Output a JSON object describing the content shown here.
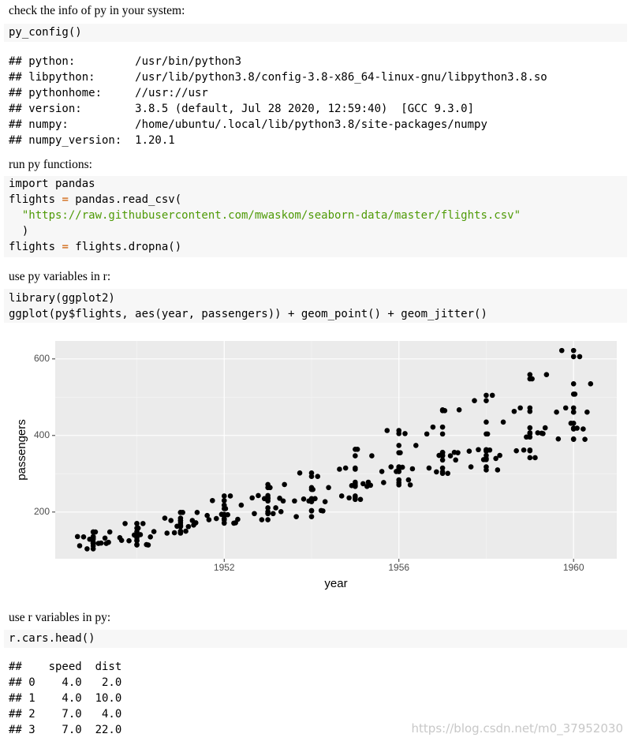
{
  "intro_1": "check the info of py in your system:",
  "code_1": [
    "py_config()"
  ],
  "output_1": [
    "## python:         /usr/bin/python3",
    "## libpython:      /usr/lib/python3.8/config-3.8-x86_64-linux-gnu/libpython3.8.so",
    "## pythonhome:     //usr://usr",
    "## version:        3.8.5 (default, Jul 28 2020, 12:59:40)  [GCC 9.3.0]",
    "## numpy:          /home/ubuntu/.local/lib/python3.8/site-packages/numpy",
    "## numpy_version:  1.20.1"
  ],
  "intro_2": "run py functions:",
  "code_2": [
    [
      "import pandas"
    ],
    [
      "flights ",
      "=",
      " pandas.read_csv("
    ],
    [
      "  \"https://raw.githubusercontent.com/mwaskom/seaborn-data/master/flights.csv\""
    ],
    [
      "  )"
    ],
    [
      "flights ",
      "=",
      " flights.dropna()"
    ]
  ],
  "intro_3": "use py variables in r:",
  "code_3": [
    "library(ggplot2)",
    "ggplot(py$flights, aes(year, passengers)) + geom_point() + geom_jitter()"
  ],
  "chart_data": {
    "type": "scatter",
    "xlabel": "year",
    "ylabel": "passengers",
    "xlim": [
      1948.13,
      1960.99
    ],
    "ylim": [
      78,
      647
    ],
    "xticks": [
      1952,
      1956,
      1960
    ],
    "yticks": [
      200,
      400,
      600
    ],
    "xminor_ticks": [
      1950,
      1954,
      1958
    ],
    "yminor_ticks": [
      300,
      500
    ],
    "grid": true,
    "panel_color": "#ebebeb",
    "series": [
      {
        "color": "#000000",
        "x": [
          1949,
          1949,
          1949,
          1949,
          1949,
          1949,
          1949,
          1949,
          1949,
          1949,
          1949,
          1949,
          1950,
          1950,
          1950,
          1950,
          1950,
          1950,
          1950,
          1950,
          1950,
          1950,
          1950,
          1950,
          1951,
          1951,
          1951,
          1951,
          1951,
          1951,
          1951,
          1951,
          1951,
          1951,
          1951,
          1951,
          1952,
          1952,
          1952,
          1952,
          1952,
          1952,
          1952,
          1952,
          1952,
          1952,
          1952,
          1952,
          1953,
          1953,
          1953,
          1953,
          1953,
          1953,
          1953,
          1953,
          1953,
          1953,
          1953,
          1953,
          1954,
          1954,
          1954,
          1954,
          1954,
          1954,
          1954,
          1954,
          1954,
          1954,
          1954,
          1954,
          1955,
          1955,
          1955,
          1955,
          1955,
          1955,
          1955,
          1955,
          1955,
          1955,
          1955,
          1955,
          1956,
          1956,
          1956,
          1956,
          1956,
          1956,
          1956,
          1956,
          1956,
          1956,
          1956,
          1956,
          1957,
          1957,
          1957,
          1957,
          1957,
          1957,
          1957,
          1957,
          1957,
          1957,
          1957,
          1957,
          1958,
          1958,
          1958,
          1958,
          1958,
          1958,
          1958,
          1958,
          1958,
          1958,
          1958,
          1958,
          1959,
          1959,
          1959,
          1959,
          1959,
          1959,
          1959,
          1959,
          1959,
          1959,
          1959,
          1959,
          1960,
          1960,
          1960,
          1960,
          1960,
          1960,
          1960,
          1960,
          1960,
          1960,
          1960,
          1960
        ],
        "values": [
          112,
          118,
          132,
          129,
          121,
          135,
          148,
          148,
          136,
          119,
          104,
          118,
          115,
          126,
          141,
          135,
          125,
          149,
          170,
          170,
          158,
          133,
          114,
          140,
          145,
          150,
          178,
          163,
          172,
          178,
          199,
          199,
          184,
          162,
          146,
          166,
          171,
          180,
          193,
          181,
          183,
          218,
          230,
          242,
          209,
          191,
          172,
          194,
          196,
          196,
          236,
          235,
          229,
          243,
          264,
          272,
          237,
          211,
          180,
          201,
          204,
          188,
          235,
          227,
          234,
          264,
          302,
          293,
          259,
          229,
          203,
          229,
          242,
          233,
          267,
          269,
          270,
          315,
          364,
          347,
          312,
          274,
          237,
          278,
          284,
          277,
          317,
          313,
          318,
          374,
          413,
          405,
          355,
          306,
          271,
          306,
          315,
          301,
          356,
          348,
          355,
          422,
          465,
          467,
          404,
          347,
          305,
          336,
          340,
          318,
          362,
          348,
          363,
          435,
          491,
          505,
          404,
          359,
          310,
          337,
          360,
          342,
          406,
          396,
          420,
          472,
          548,
          559,
          463,
          407,
          362,
          405,
          417,
          391,
          419,
          461,
          472,
          535,
          622,
          606,
          508,
          461,
          390,
          432
        ]
      },
      {
        "color": "#000000",
        "x": [
          1948.69,
          1949.12,
          1949.27,
          1948.92,
          1949.35,
          1948.78,
          1949.05,
          1949.38,
          1948.64,
          1949.18,
          1948.86,
          1949.3,
          1950.22,
          1949.65,
          1950.08,
          1950.31,
          1949.82,
          1950.39,
          1949.73,
          1950.14,
          1950.03,
          1949.61,
          1950.26,
          1949.94,
          1950.69,
          1951.12,
          1951.27,
          1950.92,
          1951.35,
          1950.78,
          1951.05,
          1951.38,
          1950.64,
          1951.18,
          1950.86,
          1951.3,
          1952.22,
          1951.65,
          1952.08,
          1952.31,
          1951.82,
          1952.39,
          1951.73,
          1952.14,
          1952.03,
          1951.61,
          1952.26,
          1951.94,
          1952.69,
          1953.12,
          1953.27,
          1952.92,
          1953.35,
          1952.78,
          1953.05,
          1953.38,
          1952.64,
          1953.18,
          1952.86,
          1953.3,
          1954.22,
          1953.65,
          1954.08,
          1954.31,
          1953.82,
          1954.39,
          1953.73,
          1954.14,
          1954.03,
          1953.61,
          1954.26,
          1953.94,
          1954.69,
          1955.12,
          1955.27,
          1954.92,
          1955.35,
          1954.78,
          1955.05,
          1955.38,
          1954.64,
          1955.18,
          1954.86,
          1955.3,
          1956.22,
          1955.65,
          1956.08,
          1956.31,
          1955.82,
          1956.39,
          1955.73,
          1956.14,
          1956.03,
          1955.61,
          1956.26,
          1955.94,
          1956.69,
          1957.12,
          1957.27,
          1956.92,
          1957.35,
          1956.78,
          1957.05,
          1957.38,
          1956.64,
          1957.18,
          1956.86,
          1957.3,
          1958.22,
          1957.65,
          1958.08,
          1958.31,
          1957.82,
          1958.39,
          1957.73,
          1958.14,
          1958.03,
          1957.61,
          1958.26,
          1957.94,
          1958.69,
          1959.12,
          1959.27,
          1958.92,
          1959.35,
          1958.78,
          1959.05,
          1959.38,
          1958.64,
          1959.18,
          1958.86,
          1959.3,
          1960.22,
          1959.65,
          1960.08,
          1960.31,
          1959.82,
          1960.39,
          1959.73,
          1960.14,
          1960.03,
          1959.61,
          1960.26,
          1959.94
        ],
        "values": [
          112,
          118,
          132,
          129,
          121,
          135,
          148,
          148,
          136,
          119,
          104,
          118,
          115,
          126,
          141,
          135,
          125,
          149,
          170,
          170,
          158,
          133,
          114,
          140,
          145,
          150,
          178,
          163,
          172,
          178,
          199,
          199,
          184,
          162,
          146,
          166,
          171,
          180,
          193,
          181,
          183,
          218,
          230,
          242,
          209,
          191,
          172,
          194,
          196,
          196,
          236,
          235,
          229,
          243,
          264,
          272,
          237,
          211,
          180,
          201,
          204,
          188,
          235,
          227,
          234,
          264,
          302,
          293,
          259,
          229,
          203,
          229,
          242,
          233,
          267,
          269,
          270,
          315,
          364,
          347,
          312,
          274,
          237,
          278,
          284,
          277,
          317,
          313,
          318,
          374,
          413,
          405,
          355,
          306,
          271,
          306,
          315,
          301,
          356,
          348,
          355,
          422,
          465,
          467,
          404,
          347,
          305,
          336,
          340,
          318,
          362,
          348,
          363,
          435,
          491,
          505,
          404,
          359,
          310,
          337,
          360,
          342,
          406,
          396,
          420,
          472,
          548,
          559,
          463,
          407,
          362,
          405,
          417,
          391,
          419,
          461,
          472,
          535,
          622,
          606,
          508,
          461,
          390,
          432
        ]
      }
    ]
  },
  "intro_4": "use r variables in py:",
  "code_4": [
    "r.cars.head()"
  ],
  "output_4": [
    "##    speed  dist",
    "## 0    4.0   2.0",
    "## 1    4.0  10.0",
    "## 2    7.0   4.0",
    "## 3    7.0  22.0"
  ],
  "watermark": "https://blog.csdn.net/m0_37952030"
}
